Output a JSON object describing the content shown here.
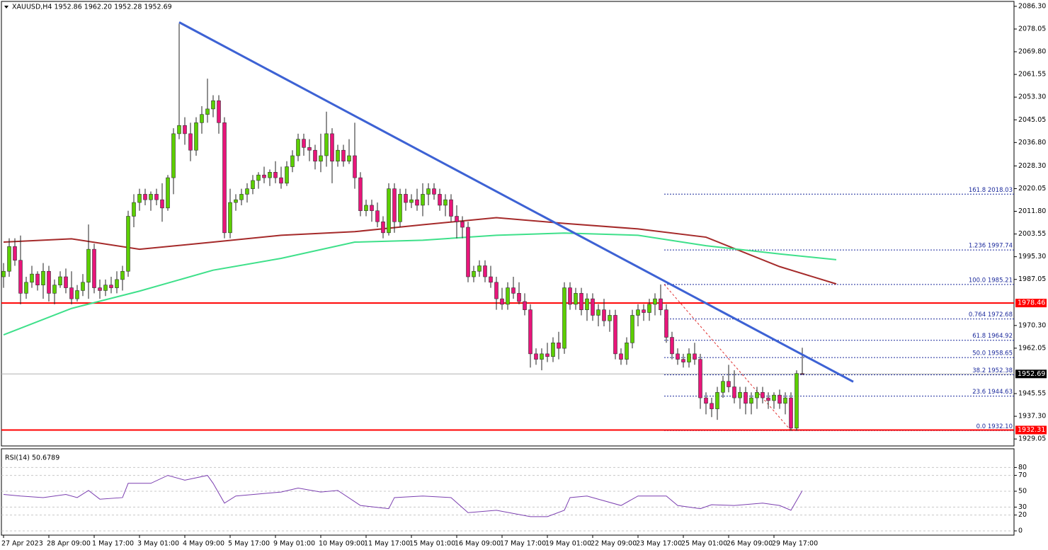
{
  "chart_data": {
    "type": "candlestick",
    "title": "XAUUSD,H4 1952.86 1962.20 1952.28 1952.69",
    "bull_color": "#5ccf00",
    "bear_color": "#e8157a",
    "x_labels": [
      "27 Apr 2023",
      "28 Apr 09:00",
      "1 May 17:00",
      "3 May 01:00",
      "4 May 09:00",
      "5 May 17:00",
      "9 May 01:00",
      "10 May 09:00",
      "11 May 17:00",
      "15 May 01:00",
      "16 May 09:00",
      "17 May 17:00",
      "19 May 01:00",
      "22 May 09:00",
      "23 May 17:00",
      "25 May 01:00",
      "26 May 09:00",
      "29 May 17:00"
    ],
    "ylim": [
      1926.52,
      2088.08
    ],
    "yticks": [
      {
        "value": 2086.3,
        "label": "2086.30"
      },
      2078.05,
      {
        "value": 2069.8,
        "label": "2069.80"
      },
      2061.55,
      {
        "value": 2053.3,
        "label": "2053.30"
      },
      2045.05,
      {
        "value": 2036.8,
        "label": "2036.80"
      },
      {
        "value": 2028.3,
        "label": "2028.30"
      },
      2020.05,
      {
        "value": 2011.8,
        "label": "2011.80"
      },
      2003.55,
      {
        "value": 1995.3,
        "label": "1995.30"
      },
      1987.05,
      {
        "value": 1970.3,
        "label": "1970.30"
      },
      1962.05,
      1945.55,
      {
        "value": 1937.3,
        "label": "1937.30"
      },
      1929.05
    ],
    "ohlc": [
      [
        1988,
        1993,
        1984,
        1990
      ],
      [
        1990,
        2002,
        1988,
        1999
      ],
      [
        1999,
        2002,
        1992,
        1994
      ],
      [
        1994,
        2003,
        1978,
        1982
      ],
      [
        1982,
        1988,
        1980,
        1986
      ],
      [
        1986,
        1992,
        1984,
        1989
      ],
      [
        1989,
        1990,
        1983,
        1985
      ],
      [
        1985,
        1993,
        1980,
        1990
      ],
      [
        1990,
        1992,
        1979,
        1982
      ],
      [
        1982,
        1987,
        1978,
        1985
      ],
      [
        1985,
        1990,
        1984,
        1988
      ],
      [
        1988,
        1991,
        1982,
        1984
      ],
      [
        1984,
        1990,
        1978,
        1980
      ],
      [
        1980,
        1985,
        1979,
        1983
      ],
      [
        1983,
        1989,
        1981,
        1986
      ],
      [
        1986,
        2007,
        1980,
        1998
      ],
      [
        1998,
        2000,
        1982,
        1984
      ],
      [
        1984,
        1987,
        1980,
        1983
      ],
      [
        1983,
        1987,
        1981,
        1985
      ],
      [
        1985,
        1988,
        1982,
        1984
      ],
      [
        1984,
        1990,
        1982,
        1987
      ],
      [
        1987,
        1992,
        1983,
        1990
      ],
      [
        1990,
        2012,
        1988,
        2010
      ],
      [
        2010,
        2018,
        2006,
        2015
      ],
      [
        2015,
        2020,
        2012,
        2018
      ],
      [
        2018,
        2020,
        2014,
        2016
      ],
      [
        2016,
        2019,
        2012,
        2018
      ],
      [
        2018,
        2020,
        2014,
        2016
      ],
      [
        2016,
        2022,
        2008,
        2013
      ],
      [
        2013,
        2025,
        2012,
        2024
      ],
      [
        2024,
        2042,
        2018,
        2040
      ],
      [
        2040,
        2080,
        2038,
        2043
      ],
      [
        2043,
        2046,
        2036,
        2040
      ],
      [
        2040,
        2044,
        2030,
        2034
      ],
      [
        2034,
        2046,
        2032,
        2044
      ],
      [
        2044,
        2050,
        2040,
        2047
      ],
      [
        2047,
        2060,
        2044,
        2049
      ],
      [
        2049,
        2054,
        2046,
        2052
      ],
      [
        2052,
        2054,
        2040,
        2044
      ],
      [
        2044,
        2046,
        2002,
        2004
      ],
      [
        2004,
        2020,
        2002,
        2015
      ],
      [
        2015,
        2018,
        2012,
        2016
      ],
      [
        2016,
        2020,
        2014,
        2018
      ],
      [
        2018,
        2022,
        2015,
        2020
      ],
      [
        2020,
        2025,
        2018,
        2023
      ],
      [
        2023,
        2026,
        2020,
        2025
      ],
      [
        2025,
        2028,
        2022,
        2024
      ],
      [
        2024,
        2027,
        2021,
        2026
      ],
      [
        2026,
        2030,
        2022,
        2024
      ],
      [
        2024,
        2028,
        2020,
        2022
      ],
      [
        2022,
        2030,
        2021,
        2028
      ],
      [
        2028,
        2034,
        2026,
        2032
      ],
      [
        2032,
        2040,
        2030,
        2038
      ],
      [
        2038,
        2040,
        2032,
        2035
      ],
      [
        2035,
        2038,
        2030,
        2034
      ],
      [
        2034,
        2036,
        2027,
        2030
      ],
      [
        2030,
        2040,
        2026,
        2032
      ],
      [
        2032,
        2048,
        2028,
        2040
      ],
      [
        2040,
        2042,
        2022,
        2030
      ],
      [
        2030,
        2036,
        2028,
        2034
      ],
      [
        2034,
        2036,
        2028,
        2030
      ],
      [
        2030,
        2038,
        2029,
        2032
      ],
      [
        2032,
        2044,
        2020,
        2024
      ],
      [
        2024,
        2026,
        2010,
        2012
      ],
      [
        2012,
        2016,
        2010,
        2014
      ],
      [
        2014,
        2016,
        2008,
        2012
      ],
      [
        2012,
        2015,
        2006,
        2008
      ],
      [
        2008,
        2010,
        2002,
        2004
      ],
      [
        2004,
        2022,
        2003,
        2020
      ],
      [
        2020,
        2022,
        2004,
        2008
      ],
      [
        2008,
        2020,
        2006,
        2018
      ],
      [
        2018,
        2020,
        2012,
        2015
      ],
      [
        2015,
        2018,
        2013,
        2016
      ],
      [
        2016,
        2020,
        2012,
        2014
      ],
      [
        2014,
        2022,
        2010,
        2018
      ],
      [
        2018,
        2022,
        2014,
        2020
      ],
      [
        2020,
        2022,
        2016,
        2018
      ],
      [
        2018,
        2020,
        2012,
        2014
      ],
      [
        2014,
        2018,
        2010,
        2016
      ],
      [
        2016,
        2018,
        2008,
        2010
      ],
      [
        2010,
        2014,
        2002,
        2008
      ],
      [
        2008,
        2010,
        2002,
        2006
      ],
      [
        2006,
        2008,
        1986,
        1988
      ],
      [
        1988,
        1992,
        1986,
        1990
      ],
      [
        1990,
        1994,
        1988,
        1992
      ],
      [
        1992,
        1994,
        1986,
        1988
      ],
      [
        1988,
        1992,
        1984,
        1986
      ],
      [
        1986,
        1988,
        1976,
        1980
      ],
      [
        1980,
        1984,
        1976,
        1978
      ],
      [
        1978,
        1986,
        1976,
        1984
      ],
      [
        1984,
        1988,
        1980,
        1982
      ],
      [
        1982,
        1986,
        1978,
        1979
      ],
      [
        1979,
        1982,
        1974,
        1976
      ],
      [
        1976,
        1978,
        1955,
        1960
      ],
      [
        1960,
        1962,
        1956,
        1958
      ],
      [
        1958,
        1962,
        1954,
        1960
      ],
      [
        1960,
        1964,
        1957,
        1959
      ],
      [
        1959,
        1966,
        1957,
        1964
      ],
      [
        1964,
        1968,
        1958,
        1962
      ],
      [
        1962,
        1986,
        1960,
        1984
      ],
      [
        1984,
        1986,
        1976,
        1978
      ],
      [
        1978,
        1984,
        1976,
        1982
      ],
      [
        1982,
        1984,
        1974,
        1976
      ],
      [
        1976,
        1982,
        1972,
        1980
      ],
      [
        1980,
        1982,
        1972,
        1974
      ],
      [
        1974,
        1978,
        1970,
        1976
      ],
      [
        1976,
        1980,
        1970,
        1972
      ],
      [
        1972,
        1976,
        1968,
        1974
      ],
      [
        1974,
        1976,
        1958,
        1960
      ],
      [
        1960,
        1962,
        1956,
        1958
      ],
      [
        1958,
        1966,
        1956,
        1964
      ],
      [
        1964,
        1976,
        1962,
        1974
      ],
      [
        1974,
        1978,
        1970,
        1976
      ],
      [
        1976,
        1978,
        1972,
        1975
      ],
      [
        1975,
        1980,
        1972,
        1978
      ],
      [
        1978,
        1982,
        1974,
        1980
      ],
      [
        1980,
        1985.2,
        1974,
        1976
      ],
      [
        1976,
        1978,
        1964,
        1966
      ],
      [
        1966,
        1968,
        1958,
        1960
      ],
      [
        1960,
        1962,
        1956,
        1958
      ],
      [
        1958,
        1960,
        1955,
        1957
      ],
      [
        1957,
        1962,
        1955,
        1960
      ],
      [
        1960,
        1964,
        1956,
        1958
      ],
      [
        1958,
        1960,
        1940,
        1944
      ],
      [
        1944,
        1946,
        1938,
        1942
      ],
      [
        1942,
        1944,
        1937,
        1940
      ],
      [
        1940,
        1948,
        1936,
        1946
      ],
      [
        1946,
        1952,
        1944,
        1950
      ],
      [
        1950,
        1956,
        1946,
        1948
      ],
      [
        1948,
        1954,
        1942,
        1944
      ],
      [
        1944,
        1948,
        1940,
        1946
      ],
      [
        1946,
        1948,
        1938,
        1942
      ],
      [
        1942,
        1946,
        1938,
        1944
      ],
      [
        1944,
        1948,
        1940,
        1946
      ],
      [
        1946,
        1948,
        1942,
        1944
      ],
      [
        1944,
        1946,
        1940,
        1943
      ],
      [
        1943,
        1946,
        1940,
        1945
      ],
      [
        1945,
        1947,
        1940,
        1942
      ],
      [
        1942,
        1946,
        1938,
        1944
      ],
      [
        1944,
        1946,
        1932,
        1933
      ],
      [
        1933,
        1954,
        1932,
        1952.86
      ],
      [
        1952.86,
        1962.2,
        1952.28,
        1952.69
      ]
    ],
    "lines": [
      {
        "color": "#a52a2a",
        "x": [
          0,
          12,
          24,
          37,
          49,
          62,
          74,
          87,
          99,
          112,
          124,
          137,
          147
        ],
        "values": [
          2000.6,
          2001.8,
          1998.0,
          2000.6,
          2003.1,
          2004.4,
          2006.9,
          2009.5,
          2007.4,
          2005.4,
          2002.4,
          1991.7,
          1985.4
        ]
      },
      {
        "color": "#3ee08a",
        "x": [
          0,
          12,
          24,
          37,
          49,
          62,
          74,
          87,
          99,
          112,
          124,
          137,
          147
        ],
        "values": [
          1966.9,
          1976.5,
          1982.8,
          1990.4,
          1994.7,
          2000.6,
          2001.3,
          2003.1,
          2003.9,
          2003.1,
          1999.3,
          1996.3,
          1994.2
        ]
      }
    ],
    "trendline": {
      "color": "#3d62d4",
      "x": [
        31,
        150
      ],
      "values": [
        2080.5,
        1949.85
      ]
    },
    "hlines": [
      {
        "value": 1978.46,
        "color": "#ff0000"
      },
      {
        "value": 1932.31,
        "color": "#ff0000"
      }
    ],
    "last_price": 1952.69,
    "fib": {
      "color": "#1c2a9c",
      "levels": [
        {
          "label": "161.8 2018.03",
          "value": 2018.03
        },
        {
          "label": "1.236 1997.74",
          "value": 1997.74
        },
        {
          "label": "100.0 1985.21",
          "value": 1985.21
        },
        {
          "label": "0.764 1972.68",
          "value": 1972.68
        },
        {
          "label": "61.8 1964.92",
          "value": 1964.92
        },
        {
          "label": "50.0 1958.65",
          "value": 1958.65
        },
        {
          "label": "38.2 1952.38",
          "value": 1952.38
        },
        {
          "label": "23.6 1944.63",
          "value": 1944.63
        },
        {
          "label": "0.0 1932.10",
          "value": 1932.1
        }
      ]
    },
    "rsi": {
      "title": "RSI(14) 50.6789",
      "color": "#7b3fb0",
      "ylim": [
        0,
        100
      ],
      "yticks": [
        80,
        70,
        50,
        30,
        20,
        0
      ],
      "x": [
        0,
        3,
        7,
        11,
        13,
        15,
        17,
        21,
        22,
        26,
        29,
        32,
        36,
        37,
        39,
        41,
        49,
        52,
        56,
        59,
        63,
        68,
        69,
        74,
        79,
        82,
        87,
        93,
        96,
        99,
        100,
        103,
        109,
        112,
        117,
        119,
        123,
        125,
        129,
        134,
        137,
        139,
        141
      ],
      "values": [
        46,
        44,
        42,
        46,
        42,
        51,
        40,
        42,
        60,
        60,
        70,
        64,
        70,
        60,
        35,
        44,
        49,
        54,
        49,
        51,
        32,
        28,
        42,
        44,
        42,
        23,
        26,
        18,
        18,
        26,
        42,
        44,
        32,
        44,
        44,
        32,
        28,
        33,
        32,
        35,
        32,
        26,
        50.68
      ]
    }
  }
}
